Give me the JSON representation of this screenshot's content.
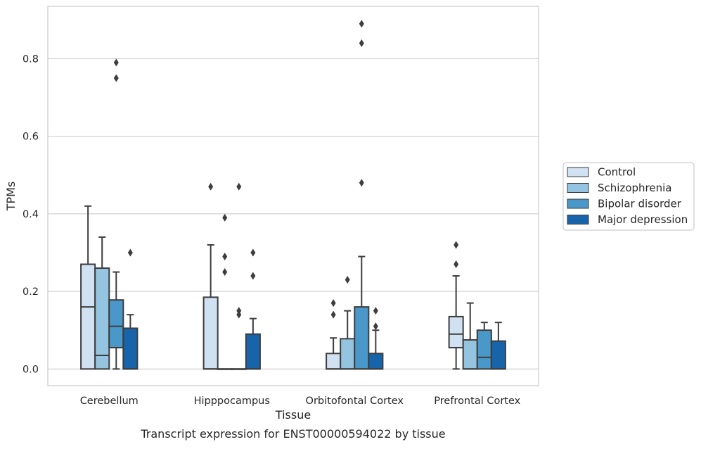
{
  "chart_data": {
    "type": "boxplot",
    "caption": "Transcript expression for ENST00000594022 by tissue",
    "xlabel": "Tissue",
    "ylabel": "TPMs",
    "ylim": [
      -0.043,
      0.935
    ],
    "yticks": [
      0.0,
      0.2,
      0.4,
      0.6,
      0.8
    ],
    "ytick_labels": [
      "0.0",
      "0.2",
      "0.4",
      "0.6",
      "0.8"
    ],
    "grid": "horizontal",
    "legend_position": "right",
    "categories": [
      "Cerebellum",
      "Hipppocampus",
      "Orbitofontal Cortex",
      "Prefrontal Cortex"
    ],
    "series": [
      {
        "name": "Control",
        "color": "#d0e1f2",
        "boxes": [
          {
            "q1": 0.0,
            "median": 0.16,
            "q3": 0.27,
            "whisker_low": 0.0,
            "whisker_high": 0.42,
            "outliers": []
          },
          {
            "q1": 0.0,
            "median": 0.0,
            "q3": 0.185,
            "whisker_low": 0.0,
            "whisker_high": 0.32,
            "outliers": [
              0.47
            ]
          },
          {
            "q1": 0.0,
            "median": 0.0,
            "q3": 0.04,
            "whisker_low": 0.0,
            "whisker_high": 0.08,
            "outliers": [
              0.14,
              0.17
            ]
          },
          {
            "q1": 0.055,
            "median": 0.09,
            "q3": 0.135,
            "whisker_low": 0.0,
            "whisker_high": 0.24,
            "outliers": [
              0.27,
              0.32
            ]
          }
        ]
      },
      {
        "name": "Schizophrenia",
        "color": "#94c4df",
        "boxes": [
          {
            "q1": 0.0,
            "median": 0.035,
            "q3": 0.26,
            "whisker_low": 0.0,
            "whisker_high": 0.34,
            "outliers": []
          },
          {
            "q1": 0.0,
            "median": 0.0,
            "q3": 0.0,
            "whisker_low": 0.0,
            "whisker_high": 0.0,
            "outliers": [
              0.25,
              0.29,
              0.39
            ]
          },
          {
            "q1": 0.0,
            "median": 0.0,
            "q3": 0.078,
            "whisker_low": 0.0,
            "whisker_high": 0.15,
            "outliers": [
              0.23
            ]
          },
          {
            "q1": 0.0,
            "median": 0.0,
            "q3": 0.075,
            "whisker_low": 0.0,
            "whisker_high": 0.17,
            "outliers": []
          }
        ]
      },
      {
        "name": "Bipolar disorder",
        "color": "#4a98c9",
        "boxes": [
          {
            "q1": 0.055,
            "median": 0.11,
            "q3": 0.178,
            "whisker_low": 0.0,
            "whisker_high": 0.25,
            "outliers": [
              0.75,
              0.79
            ]
          },
          {
            "q1": 0.0,
            "median": 0.0,
            "q3": 0.0,
            "whisker_low": 0.0,
            "whisker_high": 0.0,
            "outliers": [
              0.14,
              0.15,
              0.47
            ]
          },
          {
            "q1": 0.0,
            "median": 0.0,
            "q3": 0.16,
            "whisker_low": 0.0,
            "whisker_high": 0.29,
            "outliers": [
              0.48,
              0.84,
              0.89
            ]
          },
          {
            "q1": 0.0,
            "median": 0.03,
            "q3": 0.1,
            "whisker_low": 0.0,
            "whisker_high": 0.12,
            "outliers": []
          }
        ]
      },
      {
        "name": "Major depression",
        "color": "#1764ab",
        "boxes": [
          {
            "q1": 0.0,
            "median": 0.0,
            "q3": 0.105,
            "whisker_low": 0.0,
            "whisker_high": 0.14,
            "outliers": [
              0.3
            ]
          },
          {
            "q1": 0.0,
            "median": 0.0,
            "q3": 0.09,
            "whisker_low": 0.0,
            "whisker_high": 0.13,
            "outliers": [
              0.24,
              0.3
            ]
          },
          {
            "q1": 0.0,
            "median": 0.0,
            "q3": 0.04,
            "whisker_low": 0.0,
            "whisker_high": 0.1,
            "outliers": [
              0.11,
              0.15
            ]
          },
          {
            "q1": 0.0,
            "median": 0.0,
            "q3": 0.072,
            "whisker_low": 0.0,
            "whisker_high": 0.12,
            "outliers": []
          }
        ]
      }
    ]
  }
}
